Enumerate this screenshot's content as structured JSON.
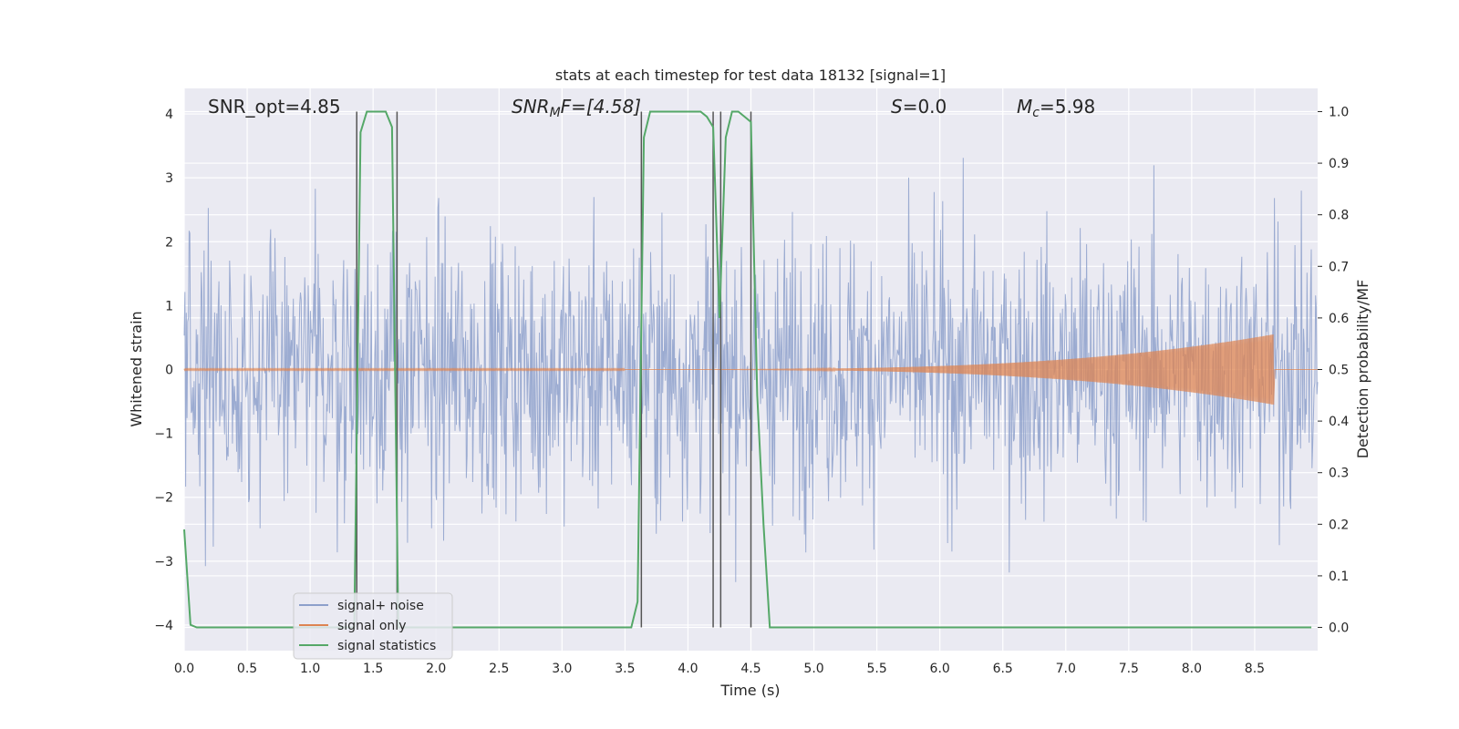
{
  "chart_data": {
    "type": "line",
    "title": "stats at each timestep for test data 18132 [signal=1]",
    "xlabel": "Time (s)",
    "ylabel": "Whitened strain",
    "ylabel_right": "Detection probability/MF",
    "xlim": [
      0.0,
      9.0
    ],
    "ylim": [
      -4.4,
      4.4
    ],
    "ylim_right": [
      -0.045,
      1.045
    ],
    "x_ticks": [
      "0.0",
      "0.5",
      "1.0",
      "1.5",
      "2.0",
      "2.5",
      "3.0",
      "3.5",
      "4.0",
      "4.5",
      "5.0",
      "5.5",
      "6.0",
      "6.5",
      "7.0",
      "7.5",
      "8.0",
      "8.5"
    ],
    "y_ticks": [
      "4",
      "3",
      "2",
      "1",
      "0",
      "−1",
      "−2",
      "−3",
      "−4"
    ],
    "y_ticks_right": [
      "1.0",
      "0.9",
      "0.8",
      "0.7",
      "0.6",
      "0.5",
      "0.4",
      "0.3",
      "0.2",
      "0.1",
      "0.0"
    ],
    "grid": true,
    "annotations": {
      "snr_opt": "SNR_opt=4.85",
      "snr_mf_sym": "SNR",
      "snr_mf_sub": "M",
      "snr_mf_rest": "F=[4.58]",
      "s_sym": "S",
      "s_rest": "=0.0",
      "mc_sym": "M",
      "mc_sub": "c",
      "mc_rest": "=5.98"
    },
    "series": [
      {
        "name": "signal+ noise",
        "color": "#8da0cb",
        "description_kind": "noise band",
        "amplitude_std": 1.1
      },
      {
        "name": "signal only",
        "color": "#dd8452",
        "description_kind": "chirp",
        "start": 3.5,
        "end": 8.65,
        "peak_amplitude": 0.55
      },
      {
        "name": "signal statistics",
        "color": "#55a868",
        "x": [
          0.0,
          0.05,
          0.1,
          0.15,
          1.3,
          1.35,
          1.4,
          1.45,
          1.6,
          1.65,
          1.7,
          1.75,
          3.55,
          3.6,
          3.65,
          3.7,
          4.1,
          4.15,
          4.2,
          4.25,
          4.3,
          4.35,
          4.4,
          4.45,
          4.5,
          4.55,
          4.6,
          4.65,
          4.7,
          8.95
        ],
        "y": [
          0.19,
          0.005,
          0.0,
          0.0,
          0.0,
          0.0,
          0.96,
          1.0,
          1.0,
          0.97,
          0.0,
          0.0,
          0.0,
          0.05,
          0.95,
          1.0,
          1.0,
          0.99,
          0.97,
          0.6,
          0.95,
          1.0,
          1.0,
          0.99,
          0.98,
          0.45,
          0.2,
          0.0,
          0.0,
          0.0
        ]
      }
    ],
    "vlines": [
      1.37,
      1.69,
      3.63,
      4.2,
      4.26,
      4.5
    ],
    "legend": {
      "placement": "lower-left",
      "entries": [
        "signal+ noise",
        "signal only",
        "signal statistics"
      ]
    }
  },
  "colors": {
    "plot_bg": "#eaeaf2",
    "grid": "#ffffff",
    "noise": "#8da0cb",
    "signal": "#dd8452",
    "stat": "#55a868",
    "vline": "#555555"
  }
}
